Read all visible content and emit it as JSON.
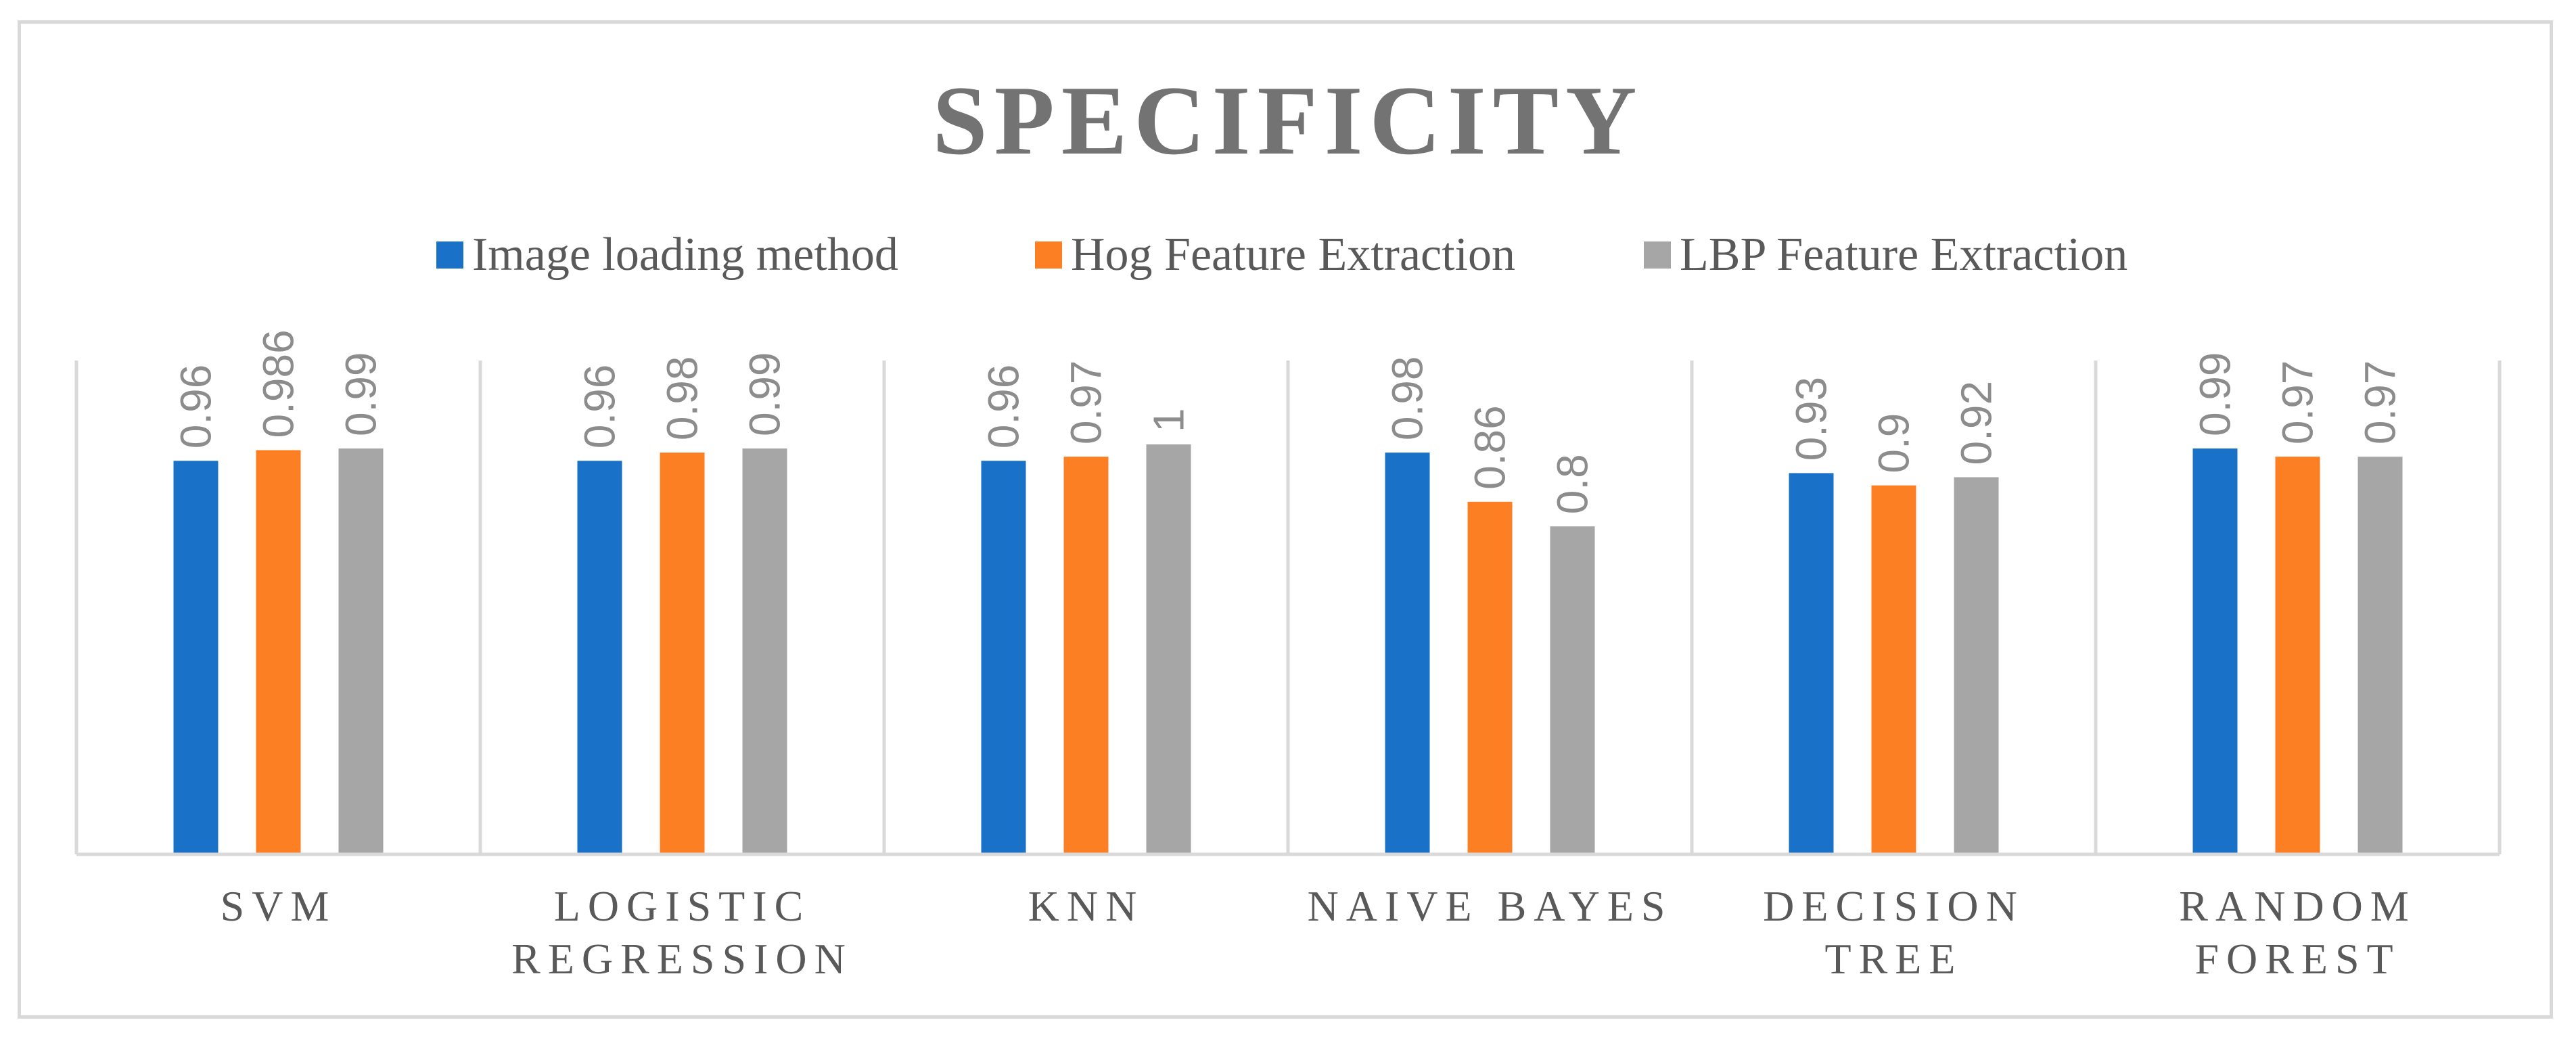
{
  "chart_data": {
    "type": "bar",
    "title": "SPECIFICITY",
    "categories": [
      [
        "SVM"
      ],
      [
        "LOGISTIC",
        "REGRESSION"
      ],
      [
        "KNN"
      ],
      [
        "NAIVE BAYES"
      ],
      [
        "DECISION",
        "TREE"
      ],
      [
        "RANDOM",
        "FOREST"
      ]
    ],
    "series": [
      {
        "name": "Image loading method",
        "color": "#1a71c8",
        "values": [
          0.96,
          0.96,
          0.96,
          0.98,
          0.93,
          0.99
        ],
        "labels": [
          "0.96",
          "0.96",
          "0.96",
          "0.98",
          "0.93",
          "0.99"
        ]
      },
      {
        "name": "Hog Feature Extraction",
        "color": "#fd7f24",
        "values": [
          0.986,
          0.98,
          0.97,
          0.86,
          0.9,
          0.97
        ],
        "labels": [
          "0.986",
          "0.98",
          "0.97",
          "0.86",
          "0.9",
          "0.97"
        ]
      },
      {
        "name": "LBP Feature Extraction",
        "color": "#a6a6a6",
        "values": [
          0.99,
          0.99,
          1,
          0.8,
          0.92,
          0.97
        ],
        "labels": [
          "0.99",
          "0.99",
          "1",
          "0.8",
          "0.92",
          "0.97"
        ]
      }
    ],
    "legend_position": "top",
    "gridlines": "vertical category separators",
    "value_axis_visible": false,
    "ylim": [
      0,
      1.2
    ]
  }
}
